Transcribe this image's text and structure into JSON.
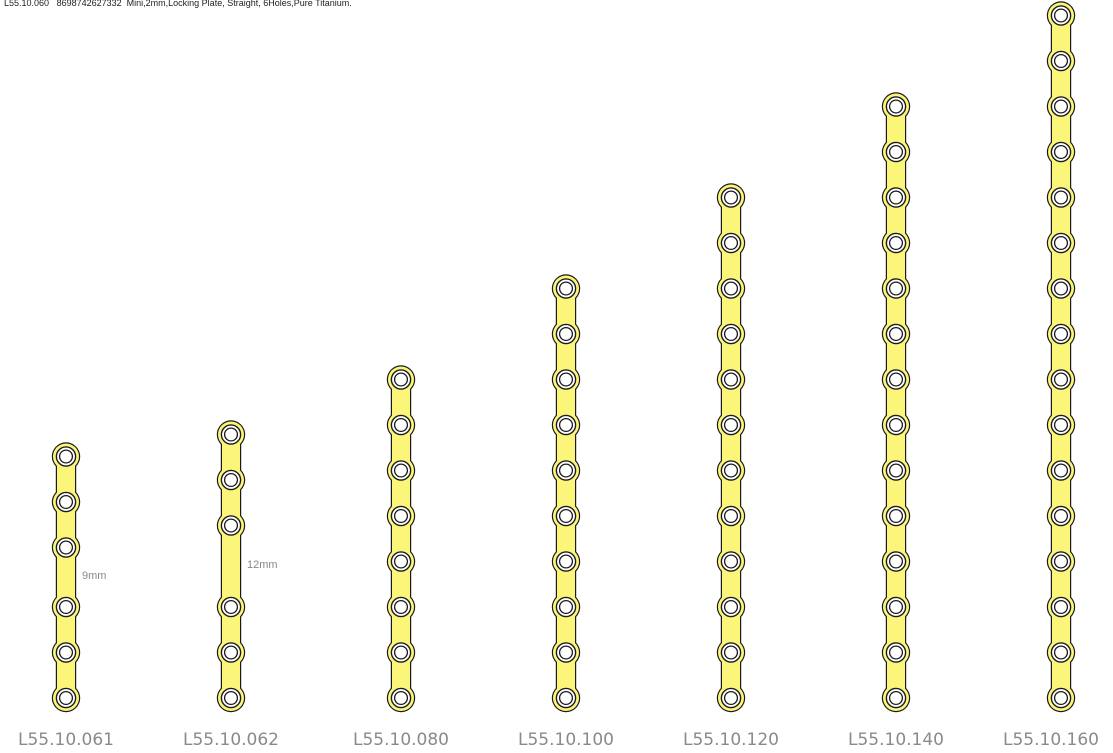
{
  "header": {
    "code": "L55.10.060",
    "barcode": "8698742627332",
    "description": "Mini,2mm,Locking Plate, Straight, 6Holes,Pure Titanium."
  },
  "colors": {
    "plate_fill": "#fbf57a",
    "plate_outline": "#1a1a1a",
    "hole_fill": "#ffffff",
    "label_text": "#8a8a8a"
  },
  "plates": [
    {
      "code": "L55.10.061",
      "holes": 6,
      "gap_after_hole": 3,
      "gap_label": "9mm"
    },
    {
      "code": "L55.10.062",
      "holes": 6,
      "gap_after_hole": 3,
      "gap_label": "12mm"
    },
    {
      "code": "L55.10.080",
      "holes": 8
    },
    {
      "code": "L55.10.100",
      "holes": 10
    },
    {
      "code": "L55.10.120",
      "holes": 12
    },
    {
      "code": "L55.10.140",
      "holes": 14
    },
    {
      "code": "L55.10.160",
      "holes": 16
    }
  ]
}
